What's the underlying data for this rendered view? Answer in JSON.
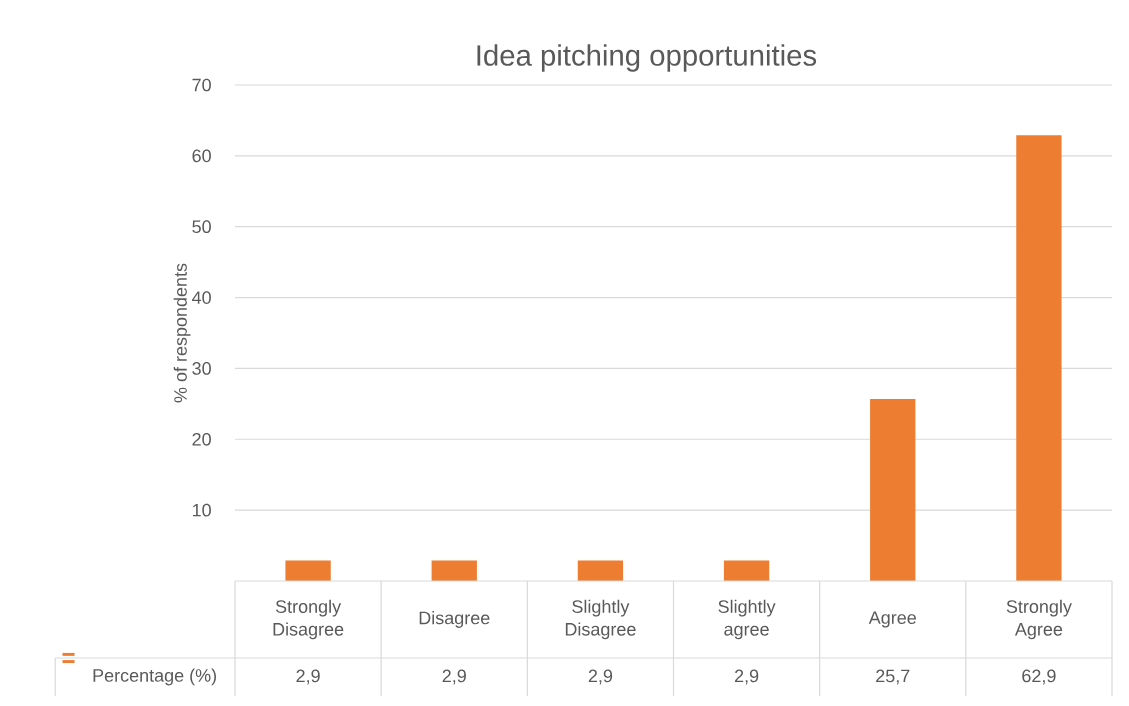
{
  "chart_data": {
    "type": "bar",
    "title": "Idea pitching opportunities",
    "ylabel": "% of respondents",
    "categories": [
      "Strongly Disagree",
      "Disagree",
      "Slightly Disagree",
      "Slightly agree",
      "Agree",
      "Strongly Agree"
    ],
    "series": [
      {
        "name": "Percentage (%)",
        "color": "#ed7d31",
        "values": [
          2.9,
          2.9,
          2.9,
          2.9,
          25.7,
          62.9
        ],
        "value_labels": [
          "2,9",
          "2,9",
          "2,9",
          "2,9",
          "25,7",
          "62,9"
        ]
      }
    ],
    "ylim": [
      0,
      70
    ],
    "yticks": [
      10,
      20,
      30,
      40,
      50,
      60,
      70
    ],
    "grid": "y",
    "legend": "bottom"
  }
}
